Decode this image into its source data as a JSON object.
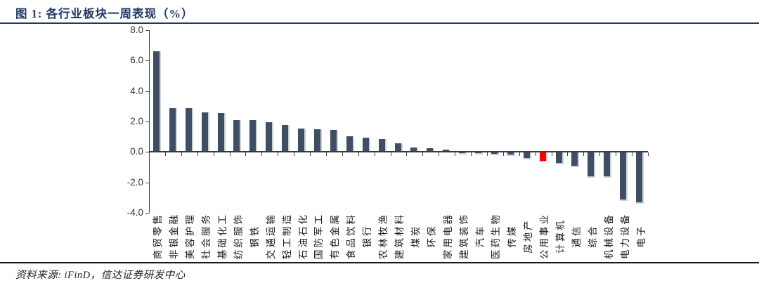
{
  "header": {
    "title": "图 1: 各行业板块一周表现（%）"
  },
  "footer": {
    "source": "资料来源: iFinD，信达证券研发中心"
  },
  "colors": {
    "bar": "#3F4E63",
    "bar_edge": "#C8D1DC",
    "highlight": "#FF0000",
    "title_accent": "#1F3864",
    "axis": "#404040"
  },
  "chart_data": {
    "type": "bar",
    "title": "各行业板块一周表现（%）",
    "categories": [
      "商贸零售",
      "非银金融",
      "美容护理",
      "社会服务",
      "基础化工",
      "纺织服饰",
      "钢铁",
      "交通运输",
      "轻工制造",
      "石油石化",
      "国防军工",
      "有色金属",
      "食品饮料",
      "银行",
      "农林牧渔",
      "建筑材料",
      "煤炭",
      "环保",
      "家用电器",
      "建筑装饰",
      "汽车",
      "医药生物",
      "传媒",
      "房地产",
      "公用事业",
      "计算机",
      "通信",
      "综合",
      "机械设备",
      "电力设备",
      "电子"
    ],
    "values": [
      6.6,
      2.9,
      2.9,
      2.6,
      2.55,
      2.1,
      2.1,
      1.95,
      1.75,
      1.55,
      1.5,
      1.45,
      1.05,
      0.95,
      0.85,
      0.55,
      0.3,
      0.25,
      0.15,
      -0.15,
      -0.15,
      -0.2,
      -0.25,
      -0.5,
      -0.7,
      -0.8,
      -1.0,
      -1.7,
      -1.7,
      -3.2,
      -3.4
    ],
    "highlight_category": "公用事业",
    "xlabel": "",
    "ylabel": "",
    "ylim": [
      -4,
      8
    ],
    "yticks": [
      8,
      6,
      4,
      2,
      0,
      -2,
      -4
    ],
    "grid": false,
    "legend": false
  }
}
